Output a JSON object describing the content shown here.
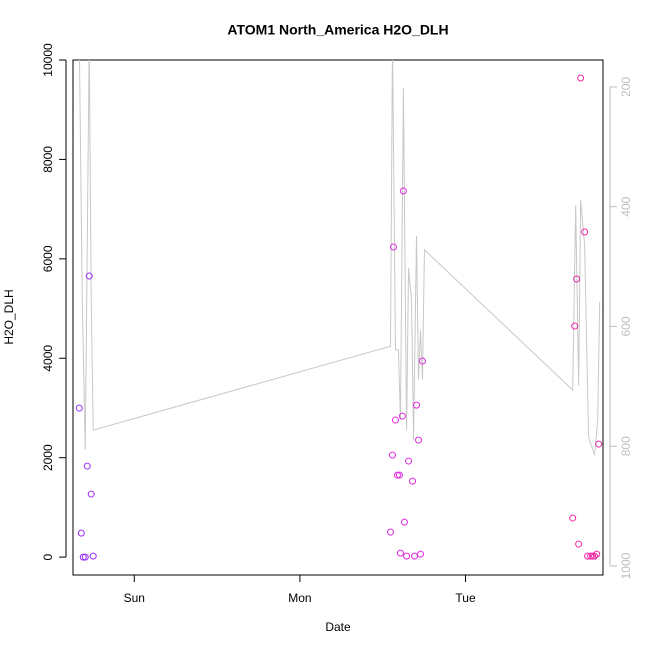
{
  "chart_data": {
    "type": "scatter",
    "title": "ATOM1 North_America H2O_DLH",
    "xlabel": "Date",
    "ylabel": "H2O_DLH",
    "xlim": [
      0.63,
      3.83
    ],
    "xticks": [
      {
        "value": 1,
        "label": "Sun"
      },
      {
        "value": 2,
        "label": "Mon"
      },
      {
        "value": 3,
        "label": "Tue"
      }
    ],
    "ylim": [
      -360,
      10000
    ],
    "yticks": [
      0,
      2000,
      4000,
      6000,
      8000,
      10000
    ],
    "y2lim": [
      1015,
      155
    ],
    "y2ticks": [
      200,
      400,
      600,
      800,
      1000
    ],
    "y2color": "#bebebe",
    "series": [
      {
        "type": "scatter",
        "x": [
          0.668,
          0.68,
          0.692,
          0.704,
          0.716,
          0.728,
          0.74,
          0.752,
          2.547,
          2.559,
          2.565,
          2.577,
          2.589,
          2.601,
          2.607,
          2.619,
          2.625,
          2.631,
          2.644,
          2.656,
          2.68,
          2.692,
          2.704,
          2.716,
          2.728,
          2.74,
          3.647,
          3.659,
          3.671,
          3.683,
          3.695,
          3.719,
          3.737,
          3.755,
          3.767,
          3.779,
          3.792,
          3.804
        ],
        "values": [
          2998,
          483,
          0,
          0,
          1831,
          5654,
          1268,
          20,
          503,
          2052,
          6237,
          2757,
          1650,
          1650,
          80,
          2837,
          7364,
          704,
          20,
          1932,
          1529,
          20,
          3058,
          2354,
          60,
          3944,
          785,
          4648,
          5594,
          262,
          9638,
          6539,
          20,
          20,
          20,
          20,
          60,
          2274
        ],
        "colors": [
          "#9b30ff",
          "#9b30ff",
          "#9b30ff",
          "#9b30ff",
          "#9b30ff",
          "#9b30ff",
          "#9b30ff",
          "#9b30ff",
          "#e02ce0",
          "#e02ce0",
          "#e02ce0",
          "#e02ce0",
          "#e02ce0",
          "#e02ce0",
          "#e02ce0",
          "#e02ce0",
          "#e02ce0",
          "#e02ce0",
          "#e02ce0",
          "#e02ce0",
          "#e02ce0",
          "#e02ce0",
          "#e02ce0",
          "#e02ce0",
          "#e02ce0",
          "#e02ce0",
          "#f02aa8",
          "#f02aa8",
          "#f02aa8",
          "#f02aa8",
          "#f02aa8",
          "#f02aa8",
          "#f02aa8",
          "#f02aa8",
          "#f02aa8",
          "#f02aa8",
          "#f02aa8",
          "#f02aa8"
        ]
      },
      {
        "type": "line",
        "axis": "y2",
        "color": "#c8c8c8",
        "x": [
          0.668,
          0.686,
          0.704,
          0.728,
          0.74,
          0.752,
          2.547,
          2.559,
          2.577,
          2.595,
          2.607,
          2.625,
          2.644,
          2.656,
          2.674,
          2.686,
          2.704,
          2.716,
          2.728,
          2.74,
          2.752,
          3.647,
          3.665,
          3.683,
          3.695,
          3.719,
          3.743,
          3.779,
          3.798,
          3.81
        ],
        "values": [
          122,
          556,
          806,
          122,
          556,
          773,
          633,
          122,
          639,
          639,
          756,
          202,
          773,
          502,
          556,
          790,
          449,
          689,
          606,
          689,
          472,
          706,
          397,
          698,
          389,
          464,
          785,
          815,
          756,
          559
        ]
      }
    ]
  }
}
